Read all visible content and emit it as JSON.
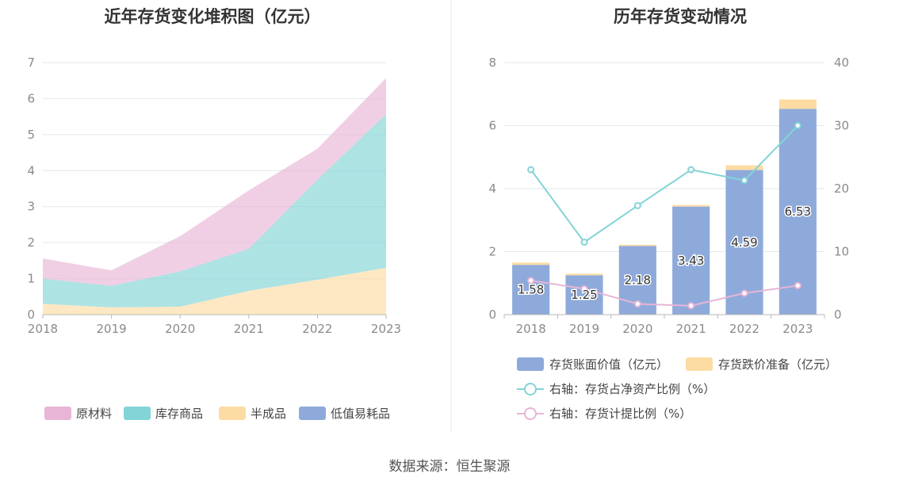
{
  "chart_data": [
    {
      "type": "area",
      "title": "近年存货变化堆积图（亿元）",
      "x": [
        "2018",
        "2019",
        "2020",
        "2021",
        "2022",
        "2023"
      ],
      "ylim": [
        0,
        7
      ],
      "yticks": [
        0,
        1,
        2,
        3,
        4,
        5,
        6,
        7
      ],
      "stacked": true,
      "grid": true,
      "legend_position": "bottom",
      "series": [
        {
          "name": "低值易耗品",
          "color": "#8eaadb",
          "values": [
            0.0,
            0.0,
            0.0,
            0.0,
            0.0,
            0.0
          ]
        },
        {
          "name": "半成品",
          "color": "#fddca3",
          "values": [
            0.3,
            0.2,
            0.22,
            0.66,
            0.97,
            1.3
          ]
        },
        {
          "name": "库存商品",
          "color": "#82d4d6",
          "values": [
            0.7,
            0.6,
            0.98,
            1.17,
            2.78,
            4.27
          ]
        },
        {
          "name": "原材料",
          "color": "#e8b5d6",
          "values": [
            0.56,
            0.43,
            0.98,
            1.62,
            0.86,
            1.0
          ]
        }
      ],
      "legend_order": [
        "原材料",
        "库存商品",
        "半成品",
        "低值易耗品"
      ]
    },
    {
      "type": "bar",
      "title": "历年存货变动情况",
      "categories": [
        "2018",
        "2019",
        "2020",
        "2021",
        "2022",
        "2023"
      ],
      "ylim": [
        0,
        8
      ],
      "yticks": [
        0,
        2,
        4,
        6,
        8
      ],
      "y2lim": [
        0,
        40
      ],
      "y2ticks": [
        0,
        10,
        20,
        30,
        40
      ],
      "grid": true,
      "legend_position": "bottom",
      "bars": [
        {
          "name": "存货账面价值（亿元）",
          "color": "#8eaadb",
          "values": [
            1.58,
            1.25,
            2.18,
            3.43,
            4.59,
            6.53
          ],
          "labels": [
            "1.58",
            "1.25",
            "2.18",
            "3.43",
            "4.59",
            "6.53"
          ]
        },
        {
          "name": "存货跌价准备（亿元）",
          "color": "#fddca3",
          "values": [
            0.07,
            0.05,
            0.04,
            0.05,
            0.15,
            0.3
          ]
        }
      ],
      "lines": [
        {
          "name": "右轴：存货占净资产比例（%）",
          "color": "#82d4d6",
          "axis": "right",
          "values": [
            23.0,
            11.5,
            17.3,
            23.0,
            21.3,
            30.0
          ]
        },
        {
          "name": "右轴：存货计提比例（%）",
          "color": "#e8b5d6",
          "axis": "right",
          "values": [
            5.4,
            4.1,
            1.7,
            1.4,
            3.4,
            4.6
          ]
        }
      ]
    }
  ],
  "footer": {
    "source": "数据来源：恒生聚源"
  }
}
